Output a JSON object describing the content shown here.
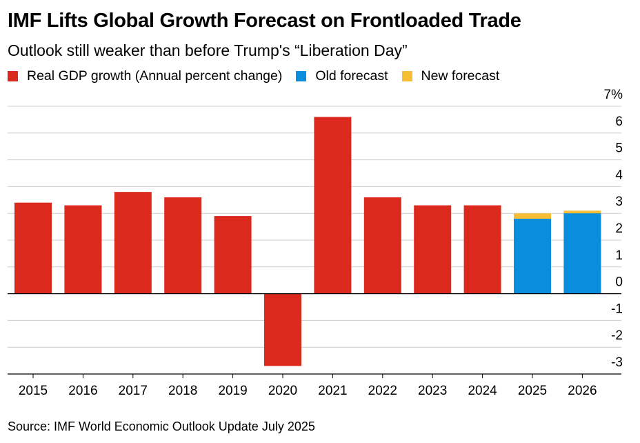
{
  "title": "IMF Lifts Global Growth Forecast on Frontloaded Trade",
  "subtitle": "Outlook still weaker than before Trump's “Liberation Day”",
  "legend": [
    {
      "label": "Real GDP growth (Annual percent change)",
      "color": "#dc291e"
    },
    {
      "label": "Old forecast",
      "color": "#0a8ddc"
    },
    {
      "label": "New forecast",
      "color": "#f6be34"
    }
  ],
  "source": "Source: IMF World Economic Outlook Update July 2025",
  "chart_data": {
    "type": "bar",
    "categories": [
      "2015",
      "2016",
      "2017",
      "2018",
      "2019",
      "2020",
      "2021",
      "2022",
      "2023",
      "2024",
      "2025",
      "2026"
    ],
    "series": [
      {
        "name": "Real GDP growth (Annual percent change)",
        "color": "#dc291e",
        "values": [
          3.4,
          3.3,
          3.8,
          3.6,
          2.9,
          -2.7,
          6.6,
          3.6,
          3.3,
          3.3,
          null,
          null
        ]
      },
      {
        "name": "Old forecast",
        "color": "#0a8ddc",
        "values": [
          null,
          null,
          null,
          null,
          null,
          null,
          null,
          null,
          null,
          null,
          2.8,
          3.0
        ]
      },
      {
        "name": "New forecast",
        "color": "#f6be34",
        "values": [
          null,
          null,
          null,
          null,
          null,
          null,
          null,
          null,
          null,
          null,
          3.0,
          3.1
        ]
      }
    ],
    "ylim": [
      -3,
      7
    ],
    "yticks": [
      7,
      6,
      5,
      4,
      3,
      2,
      1,
      0,
      -1,
      -2,
      -3
    ],
    "ytick_labels": [
      "7%",
      "6",
      "5",
      "4",
      "3",
      "2",
      "1",
      "0",
      "-1",
      "-2",
      "-3"
    ],
    "y_axis_side": "right",
    "grid": true
  }
}
